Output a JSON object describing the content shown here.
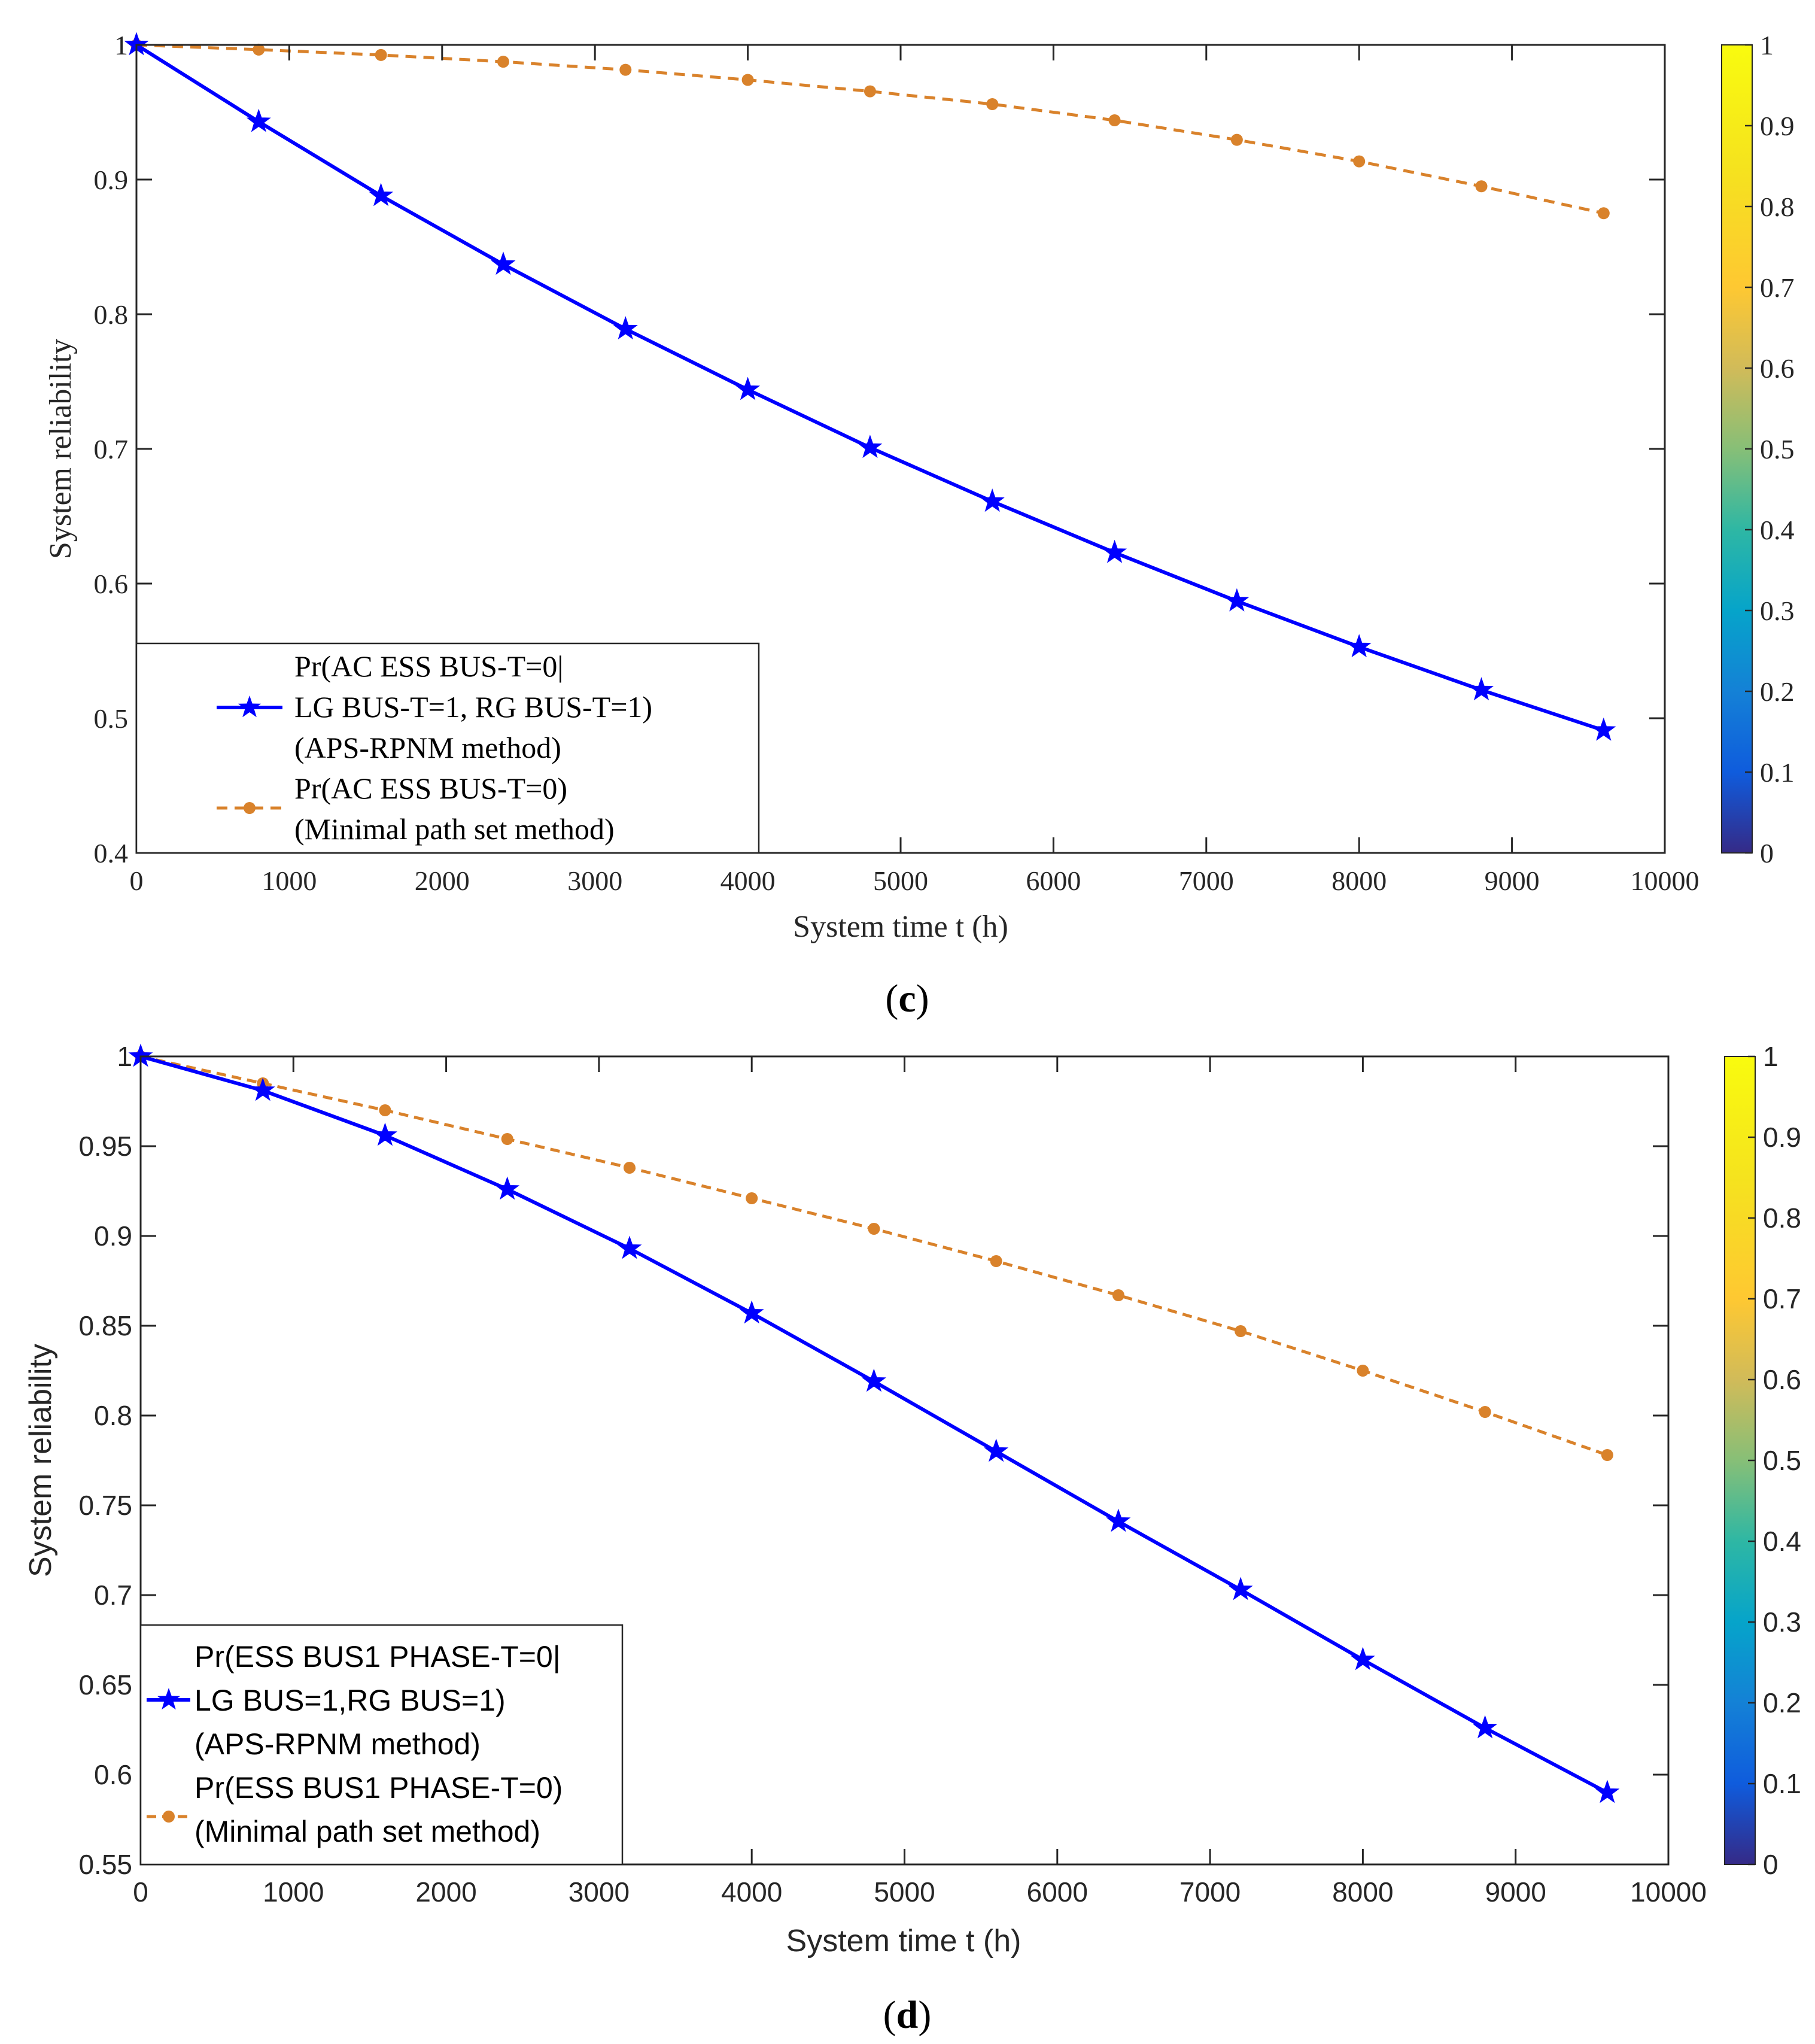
{
  "chart_data": [
    {
      "type": "line",
      "panel": "c",
      "caption_letter": "c",
      "xlabel": "System time t (h)",
      "ylabel": "System reliability",
      "xlim": [
        0,
        10000
      ],
      "ylim": [
        0.4,
        1.0
      ],
      "xticks": [
        0,
        1000,
        2000,
        3000,
        4000,
        5000,
        6000,
        7000,
        8000,
        9000,
        10000
      ],
      "yticks": [
        0.4,
        0.5,
        0.6,
        0.7,
        0.8,
        0.9,
        1
      ],
      "grid": false,
      "legend_position": "bottom-left",
      "x": [
        0,
        800,
        1600,
        2400,
        3200,
        4000,
        4800,
        5600,
        6400,
        7200,
        8000,
        8800,
        9600
      ],
      "series": [
        {
          "name": "APS-RPNM",
          "legend_lines": [
            "Pr(AC ESS BUS-T=0|",
            "LG BUS-T=1, RG BUS-T=1)",
            "(APS-RPNM method)"
          ],
          "color": "#0000FF",
          "line_style": "solid",
          "marker": "star",
          "values": [
            1.0,
            0.943,
            0.888,
            0.837,
            0.789,
            0.744,
            0.701,
            0.661,
            0.623,
            0.587,
            0.553,
            0.521,
            0.491
          ]
        },
        {
          "name": "Minimal path set",
          "legend_lines": [
            "Pr(AC ESS BUS-T=0)",
            "(Minimal path set method)"
          ],
          "color": "#D9822B",
          "line_style": "dashed",
          "marker": "circle",
          "values": [
            1.0,
            0.9965,
            0.9925,
            0.9875,
            0.9815,
            0.974,
            0.9655,
            0.956,
            0.944,
            0.9295,
            0.9135,
            0.895,
            0.875
          ]
        }
      ],
      "colorbar": {
        "min": 0,
        "max": 1,
        "ticks": [
          "0",
          "0.1",
          "0.2",
          "0.3",
          "0.4",
          "0.5",
          "0.6",
          "0.7",
          "0.8",
          "0.9",
          "1"
        ]
      }
    },
    {
      "type": "line",
      "panel": "d",
      "caption_letter": "d",
      "xlabel": "System time t (h)",
      "ylabel": "System reliability",
      "xlim": [
        0,
        10000
      ],
      "ylim": [
        0.55,
        1.0
      ],
      "xticks": [
        0,
        1000,
        2000,
        3000,
        4000,
        5000,
        6000,
        7000,
        8000,
        9000,
        10000
      ],
      "yticks": [
        0.55,
        0.6,
        0.65,
        0.7,
        0.75,
        0.8,
        0.85,
        0.9,
        0.95,
        1
      ],
      "grid": false,
      "legend_position": "bottom-left",
      "x": [
        0,
        800,
        1600,
        2400,
        3200,
        4000,
        4800,
        5600,
        6400,
        7200,
        8000,
        8800,
        9600
      ],
      "series": [
        {
          "name": "APS-RPNM",
          "legend_lines": [
            "Pr(ESS BUS1 PHASE-T=0|",
            "LG BUS=1,RG BUS=1)",
            "(APS-RPNM method)"
          ],
          "color": "#0000FF",
          "line_style": "solid",
          "marker": "star",
          "values": [
            1.0,
            0.981,
            0.956,
            0.926,
            0.893,
            0.857,
            0.819,
            0.78,
            0.741,
            0.703,
            0.664,
            0.626,
            0.59
          ]
        },
        {
          "name": "Minimal path set",
          "legend_lines": [
            "Pr(ESS BUS1 PHASE-T=0)",
            "(Minimal path set method)"
          ],
          "color": "#D9822B",
          "line_style": "dashed",
          "marker": "circle",
          "values": [
            1.0,
            0.985,
            0.97,
            0.954,
            0.938,
            0.921,
            0.904,
            0.886,
            0.867,
            0.847,
            0.825,
            0.802,
            0.778
          ]
        }
      ],
      "colorbar": {
        "min": 0,
        "max": 1,
        "ticks": [
          "0",
          "0.1",
          "0.2",
          "0.3",
          "0.4",
          "0.5",
          "0.6",
          "0.7",
          "0.8",
          "0.9",
          "1"
        ]
      }
    }
  ]
}
